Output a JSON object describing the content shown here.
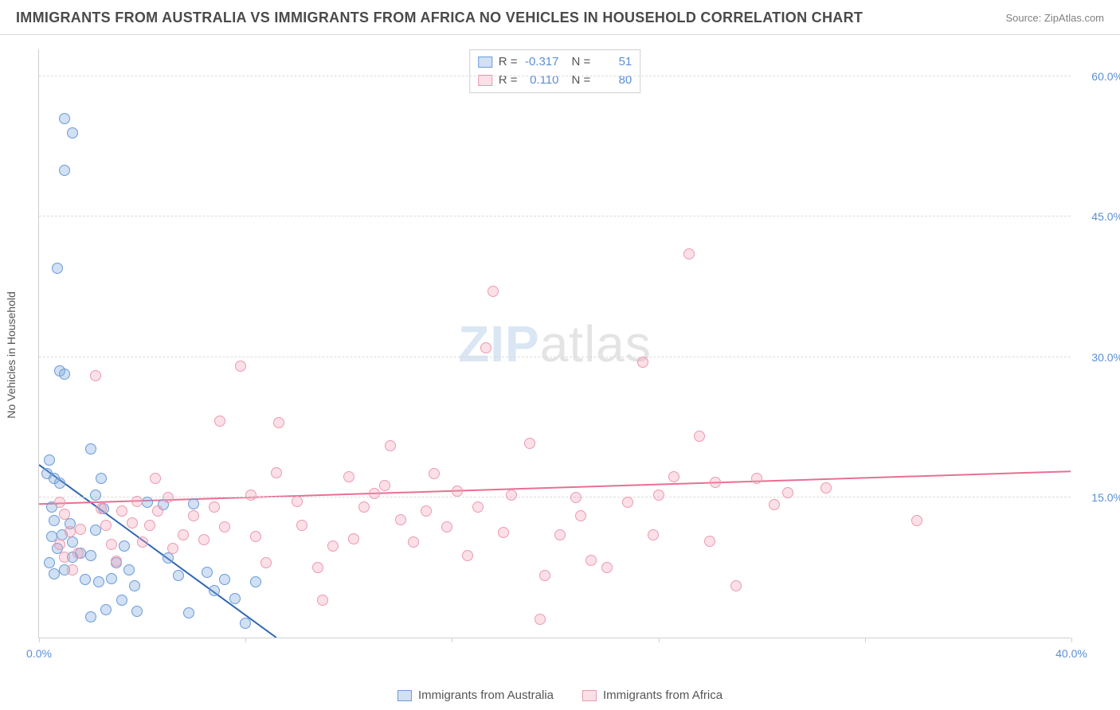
{
  "header": {
    "title": "IMMIGRANTS FROM AUSTRALIA VS IMMIGRANTS FROM AFRICA NO VEHICLES IN HOUSEHOLD CORRELATION CHART",
    "source": "Source: ZipAtlas.com"
  },
  "watermark": {
    "head": "ZIP",
    "tail": "atlas"
  },
  "chart": {
    "type": "scatter",
    "background_color": "#ffffff",
    "grid_color": "#dcdcdc",
    "axis_color": "#cfcfcf",
    "tick_label_color": "#5a8fd6",
    "tick_fontsize": 14,
    "yaxis_label": "No Vehicles in Household",
    "yaxis_label_fontsize": 14,
    "yaxis_label_color": "#555555",
    "xlim": [
      0,
      40
    ],
    "ylim": [
      0,
      63
    ],
    "xtick_positions": [
      0,
      8,
      16,
      24,
      32,
      40
    ],
    "xtick_labels": [
      "0.0%",
      "",
      "",
      "",
      "",
      "40.0%"
    ],
    "ytick_positions": [
      15,
      30,
      45,
      60
    ],
    "ytick_labels": [
      "15.0%",
      "30.0%",
      "45.0%",
      "60.0%"
    ],
    "marker_size": 14,
    "marker_border_width": 1.5,
    "trend_line_width": 2,
    "series": [
      {
        "key": "australia",
        "label": "Immigrants from Australia",
        "fill_color": "rgba(123,167,222,0.35)",
        "stroke_color": "#6a9bd8",
        "line_color": "#2f66b3",
        "R": "-0.317",
        "N": "51",
        "trend": {
          "x1": 0,
          "y1": 18.5,
          "x2": 9.2,
          "y2": 0
        },
        "points": [
          [
            0.3,
            17.5
          ],
          [
            0.4,
            19.0
          ],
          [
            0.6,
            17.0
          ],
          [
            0.5,
            14.0
          ],
          [
            0.6,
            12.5
          ],
          [
            0.8,
            16.5
          ],
          [
            1.0,
            55.5
          ],
          [
            1.3,
            54.0
          ],
          [
            1.0,
            50.0
          ],
          [
            0.7,
            39.5
          ],
          [
            0.8,
            28.5
          ],
          [
            1.0,
            28.2
          ],
          [
            0.5,
            10.8
          ],
          [
            0.7,
            9.5
          ],
          [
            0.9,
            11.0
          ],
          [
            1.2,
            12.2
          ],
          [
            1.3,
            10.2
          ],
          [
            0.4,
            8.0
          ],
          [
            0.6,
            6.8
          ],
          [
            1.0,
            7.2
          ],
          [
            1.3,
            8.6
          ],
          [
            1.6,
            9.0
          ],
          [
            2.0,
            20.2
          ],
          [
            2.2,
            15.2
          ],
          [
            2.4,
            17.0
          ],
          [
            2.5,
            13.8
          ],
          [
            2.2,
            11.5
          ],
          [
            2.0,
            8.8
          ],
          [
            1.8,
            6.2
          ],
          [
            2.3,
            6.0
          ],
          [
            2.8,
            6.3
          ],
          [
            3.0,
            8.0
          ],
          [
            3.3,
            9.8
          ],
          [
            3.5,
            7.2
          ],
          [
            3.7,
            5.5
          ],
          [
            3.2,
            4.0
          ],
          [
            2.6,
            3.0
          ],
          [
            2.0,
            2.2
          ],
          [
            3.8,
            2.8
          ],
          [
            4.2,
            14.5
          ],
          [
            4.8,
            14.2
          ],
          [
            5.0,
            8.5
          ],
          [
            5.4,
            6.6
          ],
          [
            5.8,
            2.6
          ],
          [
            6.0,
            14.3
          ],
          [
            6.5,
            7.0
          ],
          [
            6.8,
            5.0
          ],
          [
            7.2,
            6.2
          ],
          [
            7.6,
            4.2
          ],
          [
            8.0,
            1.5
          ],
          [
            8.4,
            6.0
          ]
        ]
      },
      {
        "key": "africa",
        "label": "Immigrants from Africa",
        "fill_color": "rgba(244,160,181,0.32)",
        "stroke_color": "#ec9ab0",
        "line_color": "#e86f93",
        "R": "0.110",
        "N": "80",
        "trend": {
          "x1": 0,
          "y1": 14.3,
          "x2": 40,
          "y2": 17.8
        },
        "points": [
          [
            0.8,
            10.0
          ],
          [
            1.0,
            8.6
          ],
          [
            1.2,
            11.3
          ],
          [
            1.0,
            13.2
          ],
          [
            0.8,
            14.5
          ],
          [
            1.3,
            7.2
          ],
          [
            1.5,
            9.0
          ],
          [
            1.6,
            11.6
          ],
          [
            2.2,
            28.0
          ],
          [
            2.4,
            13.8
          ],
          [
            2.6,
            12.0
          ],
          [
            2.8,
            10.0
          ],
          [
            3.0,
            8.2
          ],
          [
            3.2,
            13.5
          ],
          [
            3.6,
            12.3
          ],
          [
            3.8,
            14.6
          ],
          [
            4.0,
            10.2
          ],
          [
            4.3,
            12.0
          ],
          [
            4.6,
            13.5
          ],
          [
            4.5,
            17.0
          ],
          [
            5.0,
            15.0
          ],
          [
            5.2,
            9.5
          ],
          [
            5.6,
            11.0
          ],
          [
            6.0,
            13.0
          ],
          [
            6.4,
            10.5
          ],
          [
            6.8,
            14.0
          ],
          [
            7.2,
            11.8
          ],
          [
            7.0,
            23.2
          ],
          [
            7.8,
            29.0
          ],
          [
            8.2,
            15.2
          ],
          [
            8.4,
            10.8
          ],
          [
            8.8,
            8.0
          ],
          [
            9.2,
            17.6
          ],
          [
            9.3,
            23.0
          ],
          [
            10.0,
            14.6
          ],
          [
            10.2,
            12.0
          ],
          [
            10.8,
            7.5
          ],
          [
            11.0,
            4.0
          ],
          [
            11.4,
            9.8
          ],
          [
            12.0,
            17.2
          ],
          [
            12.2,
            10.6
          ],
          [
            12.6,
            14.0
          ],
          [
            13.0,
            15.4
          ],
          [
            13.4,
            16.3
          ],
          [
            13.6,
            20.5
          ],
          [
            14.0,
            12.6
          ],
          [
            14.5,
            10.2
          ],
          [
            15.0,
            13.5
          ],
          [
            15.3,
            17.5
          ],
          [
            15.8,
            11.8
          ],
          [
            16.2,
            15.7
          ],
          [
            16.6,
            8.8
          ],
          [
            17.0,
            14.0
          ],
          [
            17.3,
            31.0
          ],
          [
            17.6,
            37.0
          ],
          [
            18.0,
            11.2
          ],
          [
            18.3,
            15.2
          ],
          [
            19.0,
            20.8
          ],
          [
            19.4,
            2.0
          ],
          [
            19.6,
            6.6
          ],
          [
            20.2,
            11.0
          ],
          [
            20.8,
            15.0
          ],
          [
            21.4,
            8.3
          ],
          [
            22.0,
            7.5
          ],
          [
            22.8,
            14.5
          ],
          [
            23.4,
            29.5
          ],
          [
            24.0,
            15.2
          ],
          [
            25.2,
            41.0
          ],
          [
            25.6,
            21.5
          ],
          [
            26.2,
            16.6
          ],
          [
            27.0,
            5.5
          ],
          [
            27.8,
            17.0
          ],
          [
            29.0,
            15.5
          ],
          [
            26.0,
            10.3
          ],
          [
            23.8,
            11.0
          ],
          [
            21.0,
            13.0
          ],
          [
            34.0,
            12.5
          ],
          [
            28.5,
            14.2
          ],
          [
            30.5,
            16.0
          ],
          [
            24.6,
            17.2
          ]
        ]
      }
    ]
  },
  "bottom_legend": {
    "entries": [
      {
        "series": "australia"
      },
      {
        "series": "africa"
      }
    ]
  }
}
